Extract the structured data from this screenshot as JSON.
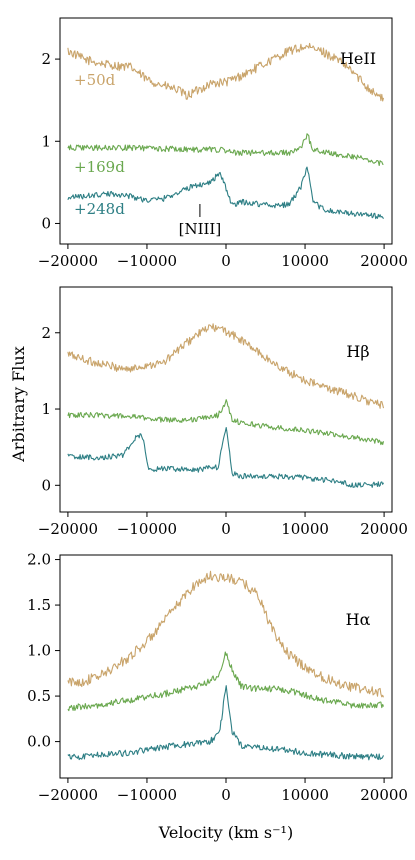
{
  "colors": {
    "+50d": "#c9a46b",
    "+169d": "#6aa84f",
    "+248d": "#2e7f85"
  },
  "xlabel": "Velocity (km s⁻¹)",
  "ylabel": "Arbitrary Flux",
  "xticks": [
    "−20000",
    "−10000",
    "0",
    "10000",
    "20000"
  ],
  "chart_data": [
    {
      "type": "line",
      "title": "HeII",
      "xlim": [
        -21000,
        21000
      ],
      "ylim": [
        -0.25,
        2.5
      ],
      "yticks": [
        "0",
        "1",
        "2"
      ],
      "ytick_values": [
        0,
        1,
        2
      ],
      "epoch_labels": [
        "+50d",
        "+169d",
        "+248d"
      ],
      "annotation": "[NIII]",
      "annotation_x": -3300,
      "series": [
        {
          "name": "+50d",
          "x": [
            -20000,
            -18000,
            -16000,
            -14000,
            -12000,
            -10000,
            -8000,
            -6000,
            -5000,
            -4000,
            -2000,
            0,
            2000,
            4000,
            6000,
            8000,
            10000,
            12000,
            14000,
            16000,
            18000,
            20000
          ],
          "y": [
            2.1,
            2.0,
            1.95,
            1.92,
            1.9,
            1.75,
            1.68,
            1.62,
            1.55,
            1.6,
            1.7,
            1.72,
            1.8,
            1.9,
            2.0,
            2.1,
            2.15,
            2.1,
            2.0,
            1.85,
            1.65,
            1.5
          ]
        },
        {
          "name": "+169d",
          "x": [
            -20000,
            -16000,
            -12000,
            -8000,
            -4000,
            -1000,
            0,
            1000,
            4000,
            8000,
            9500,
            10300,
            11000,
            14000,
            17000,
            20000
          ],
          "y": [
            0.92,
            0.92,
            0.92,
            0.91,
            0.9,
            0.9,
            0.88,
            0.86,
            0.86,
            0.86,
            0.92,
            1.08,
            0.9,
            0.84,
            0.8,
            0.72
          ]
        },
        {
          "name": "+248d",
          "x": [
            -20000,
            -18000,
            -16000,
            -14000,
            -12000,
            -10000,
            -8000,
            -6000,
            -4000,
            -2000,
            -800,
            0,
            800,
            2000,
            4000,
            6000,
            8000,
            9500,
            10300,
            11000,
            13000,
            16000,
            20000
          ],
          "y": [
            0.32,
            0.33,
            0.35,
            0.36,
            0.33,
            0.28,
            0.3,
            0.38,
            0.46,
            0.5,
            0.62,
            0.42,
            0.22,
            0.26,
            0.24,
            0.22,
            0.23,
            0.45,
            0.68,
            0.25,
            0.15,
            0.12,
            0.08
          ]
        }
      ]
    },
    {
      "type": "line",
      "title": "Hβ",
      "xlim": [
        -21000,
        21000
      ],
      "ylim": [
        -0.35,
        2.6
      ],
      "yticks": [
        "0",
        "1",
        "2"
      ],
      "ytick_values": [
        0,
        1,
        2
      ],
      "series": [
        {
          "name": "+50d",
          "x": [
            -20000,
            -17000,
            -14000,
            -12000,
            -10000,
            -8000,
            -6000,
            -4000,
            -2000,
            0,
            2000,
            4000,
            6000,
            8000,
            10000,
            12000,
            14000,
            16000,
            18000,
            20000
          ],
          "y": [
            1.72,
            1.62,
            1.55,
            1.52,
            1.58,
            1.6,
            1.78,
            1.95,
            2.08,
            2.02,
            1.9,
            1.75,
            1.6,
            1.48,
            1.38,
            1.3,
            1.24,
            1.18,
            1.1,
            1.04
          ]
        },
        {
          "name": "+169d",
          "x": [
            -20000,
            -16000,
            -12000,
            -8000,
            -4000,
            -1000,
            0,
            800,
            2000,
            6000,
            10000,
            14000,
            18000,
            20000
          ],
          "y": [
            0.92,
            0.92,
            0.9,
            0.86,
            0.86,
            0.92,
            1.1,
            0.86,
            0.82,
            0.76,
            0.72,
            0.66,
            0.6,
            0.56
          ]
        },
        {
          "name": "+248d",
          "x": [
            -20000,
            -16000,
            -13000,
            -11500,
            -10600,
            -9800,
            -8000,
            -4000,
            -1000,
            0,
            800,
            2000,
            6000,
            10000,
            14000,
            16000,
            18000,
            20000
          ],
          "y": [
            0.38,
            0.36,
            0.4,
            0.62,
            0.66,
            0.2,
            0.22,
            0.2,
            0.24,
            0.78,
            0.15,
            0.12,
            0.12,
            0.1,
            0.05,
            0.0,
            0.0,
            0.02
          ]
        }
      ]
    },
    {
      "type": "line",
      "title": "Hα",
      "xlim": [
        -21000,
        21000
      ],
      "ylim": [
        -0.4,
        2.05
      ],
      "yticks": [
        "0.0",
        "0.5",
        "1.0",
        "1.5",
        "2.0"
      ],
      "ytick_values": [
        0.0,
        0.5,
        1.0,
        1.5,
        2.0
      ],
      "series": [
        {
          "name": "+50d",
          "x": [
            -20000,
            -18000,
            -16000,
            -14000,
            -12000,
            -10000,
            -8000,
            -6000,
            -4000,
            -2000,
            0,
            2000,
            4000,
            6000,
            8000,
            10000,
            12000,
            14000,
            16000,
            18000,
            20000
          ],
          "y": [
            0.65,
            0.66,
            0.72,
            0.82,
            0.95,
            1.1,
            1.3,
            1.52,
            1.72,
            1.82,
            1.8,
            1.75,
            1.62,
            1.2,
            0.95,
            0.82,
            0.72,
            0.65,
            0.6,
            0.56,
            0.53
          ]
        },
        {
          "name": "+169d",
          "x": [
            -20000,
            -16000,
            -12000,
            -8000,
            -4000,
            -2000,
            -800,
            0,
            800,
            2000,
            4000,
            6000,
            8000,
            12000,
            16000,
            20000
          ],
          "y": [
            0.37,
            0.4,
            0.46,
            0.52,
            0.6,
            0.66,
            0.75,
            0.98,
            0.78,
            0.6,
            0.58,
            0.58,
            0.56,
            0.46,
            0.4,
            0.4
          ]
        },
        {
          "name": "+248d",
          "x": [
            -20000,
            -16000,
            -12000,
            -8000,
            -4000,
            -2000,
            -800,
            0,
            800,
            2000,
            4000,
            6000,
            8000,
            12000,
            16000,
            20000
          ],
          "y": [
            -0.17,
            -0.15,
            -0.12,
            -0.06,
            -0.02,
            0.0,
            0.1,
            0.62,
            0.1,
            -0.05,
            -0.05,
            -0.08,
            -0.1,
            -0.14,
            -0.16,
            -0.17
          ]
        }
      ]
    }
  ]
}
